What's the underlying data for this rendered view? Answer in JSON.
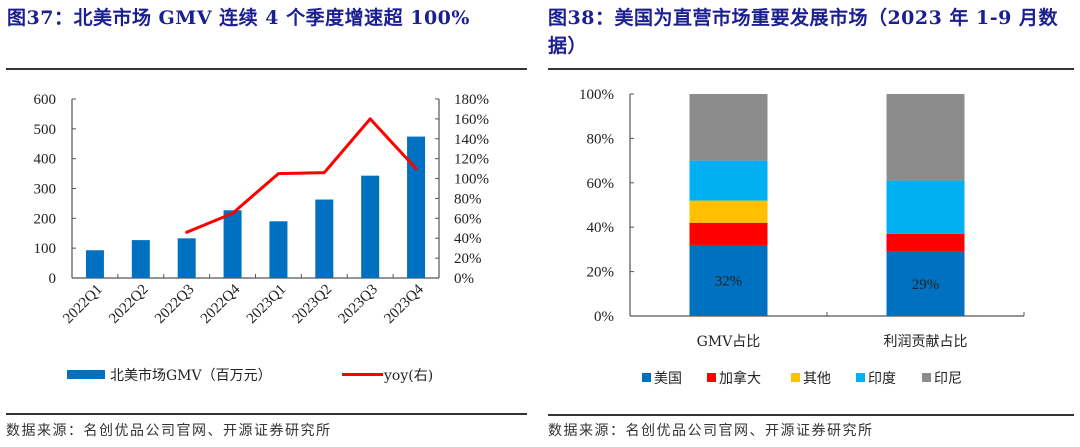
{
  "left_figure": {
    "title": "图37：北美市场 GMV 连续 4 个季度增速超 100%",
    "source": "数据来源：名创优品公司官网、开源证券研究所"
  },
  "right_figure": {
    "title": "图38：美国为直营市场重要发展市场（2023 年 1-9 月数据）",
    "source": "数据来源：名创优品公司官网、开源证券研究所"
  },
  "chart_data": [
    {
      "type": "bar",
      "title": "北美市场 GMV 连续 4 个季度增速超 100%",
      "categories": [
        "2022Q1",
        "2022Q2",
        "2022Q3",
        "2022Q4",
        "2023Q1",
        "2023Q2",
        "2023Q3",
        "2023Q4"
      ],
      "series": [
        {
          "name": "北美市场GMV（百万元）",
          "type": "bar",
          "axis": "left",
          "color": "#0070c0",
          "values": [
            93,
            127,
            133,
            227,
            190,
            263,
            343,
            474
          ]
        },
        {
          "name": "yoy(右)",
          "type": "line",
          "axis": "right",
          "color": "#ff0000",
          "values": [
            null,
            null,
            46,
            65,
            105,
            106,
            160,
            110
          ]
        }
      ],
      "y_left": {
        "ylim": [
          0,
          600
        ],
        "ticks": [
          "0",
          "100",
          "200",
          "300",
          "400",
          "500",
          "600"
        ]
      },
      "y_right": {
        "ylim": [
          0,
          180
        ],
        "ticks": [
          "0%",
          "20%",
          "40%",
          "60%",
          "80%",
          "100%",
          "120%",
          "140%",
          "160%",
          "180%"
        ]
      },
      "xlabel": "",
      "ylabel": "",
      "grid": false,
      "legend_position": "bottom"
    },
    {
      "type": "bar",
      "stacked": true,
      "title": "美国为直营市场重要发展市场（2023 年 1-9 月数据）",
      "categories": [
        "GMV占比",
        "利润贡献占比"
      ],
      "series": [
        {
          "name": "美国",
          "color": "#0070c0",
          "values": [
            32,
            29
          ],
          "labels": [
            "32%",
            "29%"
          ]
        },
        {
          "name": "加拿大",
          "color": "#ff0000",
          "values": [
            10,
            8
          ]
        },
        {
          "name": "其他",
          "color": "#ffc000",
          "values": [
            10,
            0
          ]
        },
        {
          "name": "印度",
          "color": "#00b0f0",
          "values": [
            18,
            24
          ]
        },
        {
          "name": "印尼",
          "color": "#8c8c8c",
          "values": [
            30,
            39
          ]
        }
      ],
      "y": {
        "ylim": [
          0,
          100
        ],
        "ticks": [
          "0%",
          "20%",
          "40%",
          "60%",
          "80%",
          "100%"
        ]
      },
      "xlabel": "",
      "ylabel": "",
      "grid": false,
      "legend_position": "bottom"
    }
  ]
}
